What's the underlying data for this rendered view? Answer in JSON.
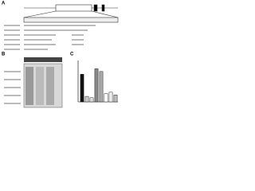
{
  "panels": {
    "a": {
      "label": "A"
    },
    "b": {
      "label": "B"
    },
    "c": {
      "label": "C"
    }
  },
  "chart_data": {
    "type": "bar",
    "values": [
      1.0,
      0.2,
      0.15,
      1.2,
      1.1,
      0.3,
      0.35,
      0.25
    ],
    "colors": [
      "#111111",
      "#cccccc",
      "#dddddd",
      "#888888",
      "#aaaaaa",
      "#ffffff",
      "#eeeeee",
      "#bbbbbb"
    ],
    "ylim": [
      0,
      1.5
    ]
  }
}
